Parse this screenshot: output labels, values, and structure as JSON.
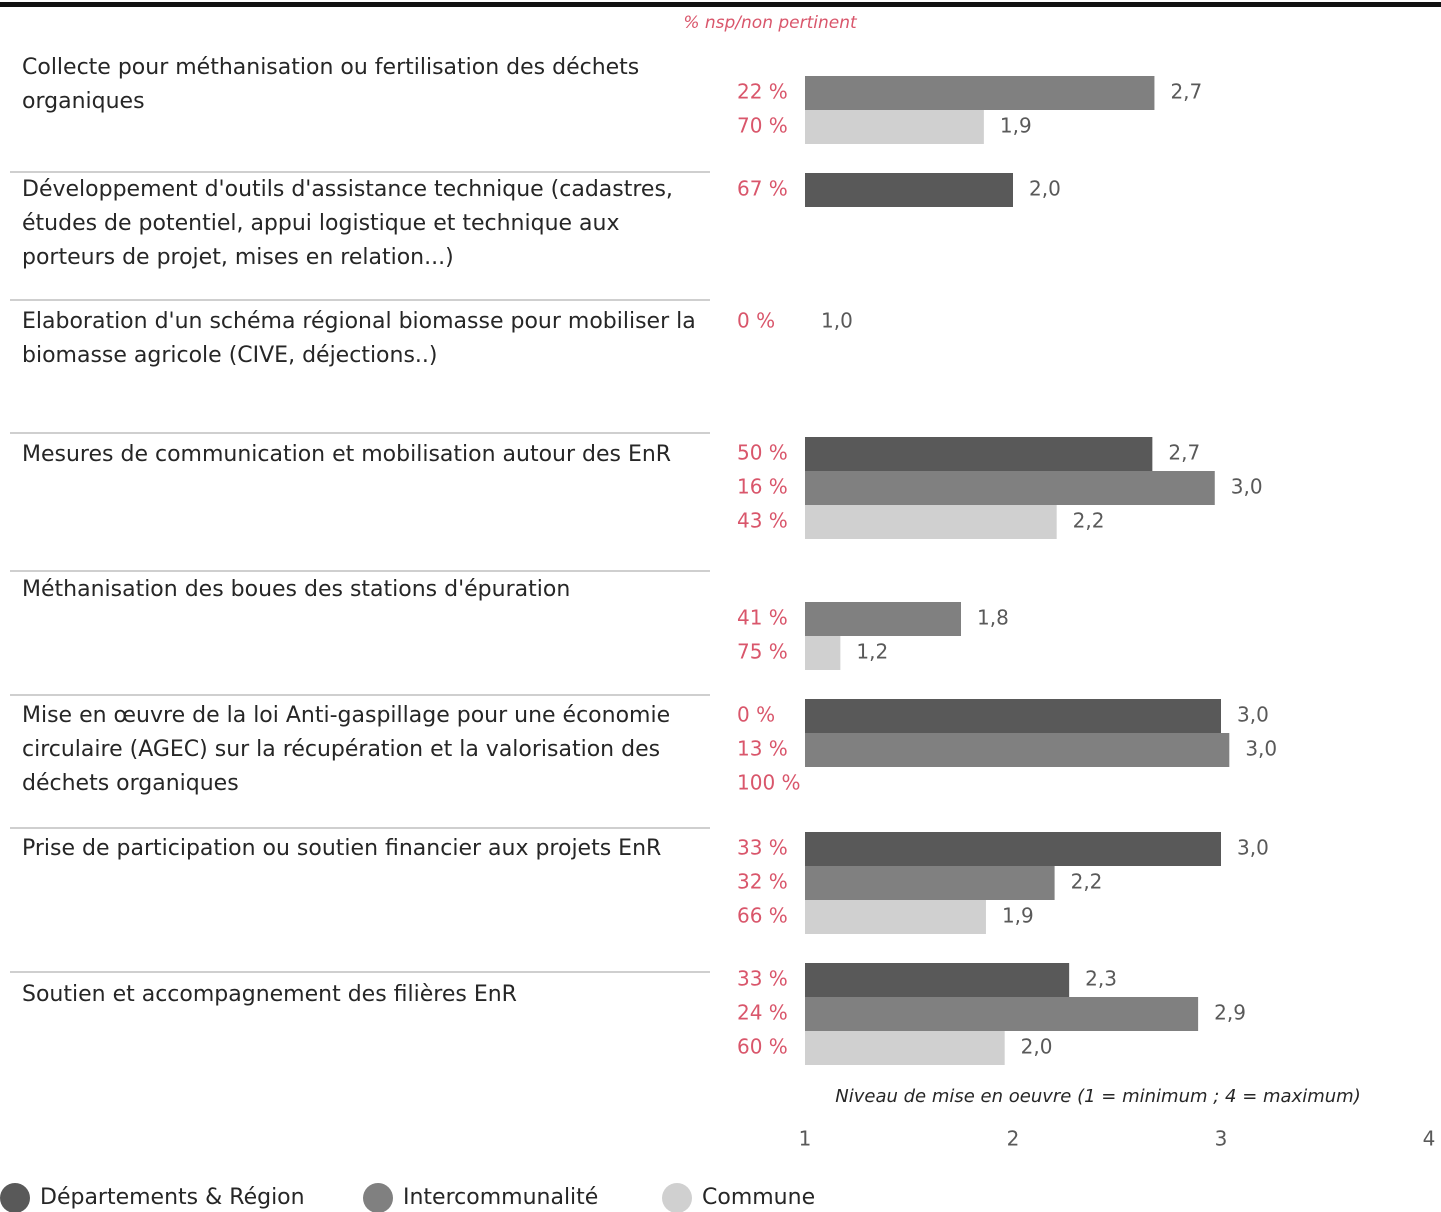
{
  "chart_data": {
    "type": "bar",
    "orientation": "horizontal",
    "nsp_header": "% nsp/non pertinent",
    "xlabel": "Niveau de mise en oeuvre (1 = minimum ; 4 = maximum)",
    "categories": [
      "Collecte pour méthanisation ou fertilisation des déchets organiques",
      "Développement d'outils d'assistance technique (cadastres, études de potentiel, appui logistique et technique aux porteurs de projet, mises en relation...)",
      "Elaboration d'un schéma régional biomasse pour mobiliser la biomasse agricole (CIVE, déjections..)",
      "Mesures de communication et mobilisation autour des EnR",
      "Méthanisation des boues des stations d'épuration",
      "Mise en œuvre de la loi Anti-gaspillage pour une économie circulaire (AGEC) sur la récupération et la valorisation des déchets organiques",
      "Prise de participation ou soutien financier aux projets EnR",
      "Soutien et accompagnement des filières EnR"
    ],
    "xlim": [
      1,
      4
    ],
    "xticks": [
      1,
      2,
      3,
      4
    ],
    "series": [
      {
        "name": "Départements & Région",
        "color": "#595959",
        "values": [
          null,
          2.0,
          1.0,
          2.67,
          null,
          3.0,
          3.0,
          2.27
        ],
        "value_labels": [
          null,
          "2,0",
          "1,0",
          "2,7",
          null,
          "3,0",
          "3,0",
          "2,3"
        ],
        "nsp": [
          null,
          67,
          0,
          50,
          null,
          0,
          33,
          33
        ],
        "nsp_labels": [
          null,
          "67 %",
          "0 %",
          "50 %",
          null,
          "0 %",
          "33 %",
          "33 %"
        ]
      },
      {
        "name": "Intercommunalité",
        "color": "#808080",
        "values": [
          2.68,
          null,
          null,
          2.97,
          1.75,
          3.04,
          2.2,
          2.89
        ],
        "value_labels": [
          "2,7",
          null,
          null,
          "3,0",
          "1,8",
          "3,0",
          "2,2",
          "2,9"
        ],
        "nsp": [
          22,
          null,
          null,
          16,
          41,
          13,
          32,
          24
        ],
        "nsp_labels": [
          "22 %",
          null,
          null,
          "16 %",
          "41 %",
          "13 %",
          "32 %",
          "24 %"
        ]
      },
      {
        "name": "Commune",
        "color": "#d0d0d0",
        "values": [
          1.86,
          null,
          null,
          2.21,
          1.17,
          null,
          1.87,
          1.96
        ],
        "value_labels": [
          "1,9",
          null,
          null,
          "2,2",
          "1,2",
          null,
          "1,9",
          "2,0"
        ],
        "nsp": [
          70,
          null,
          null,
          43,
          75,
          100,
          66,
          60
        ],
        "nsp_labels": [
          "70 %",
          null,
          null,
          "43 %",
          "75 %",
          "100 %",
          "66 %",
          "60 %"
        ]
      }
    ]
  }
}
